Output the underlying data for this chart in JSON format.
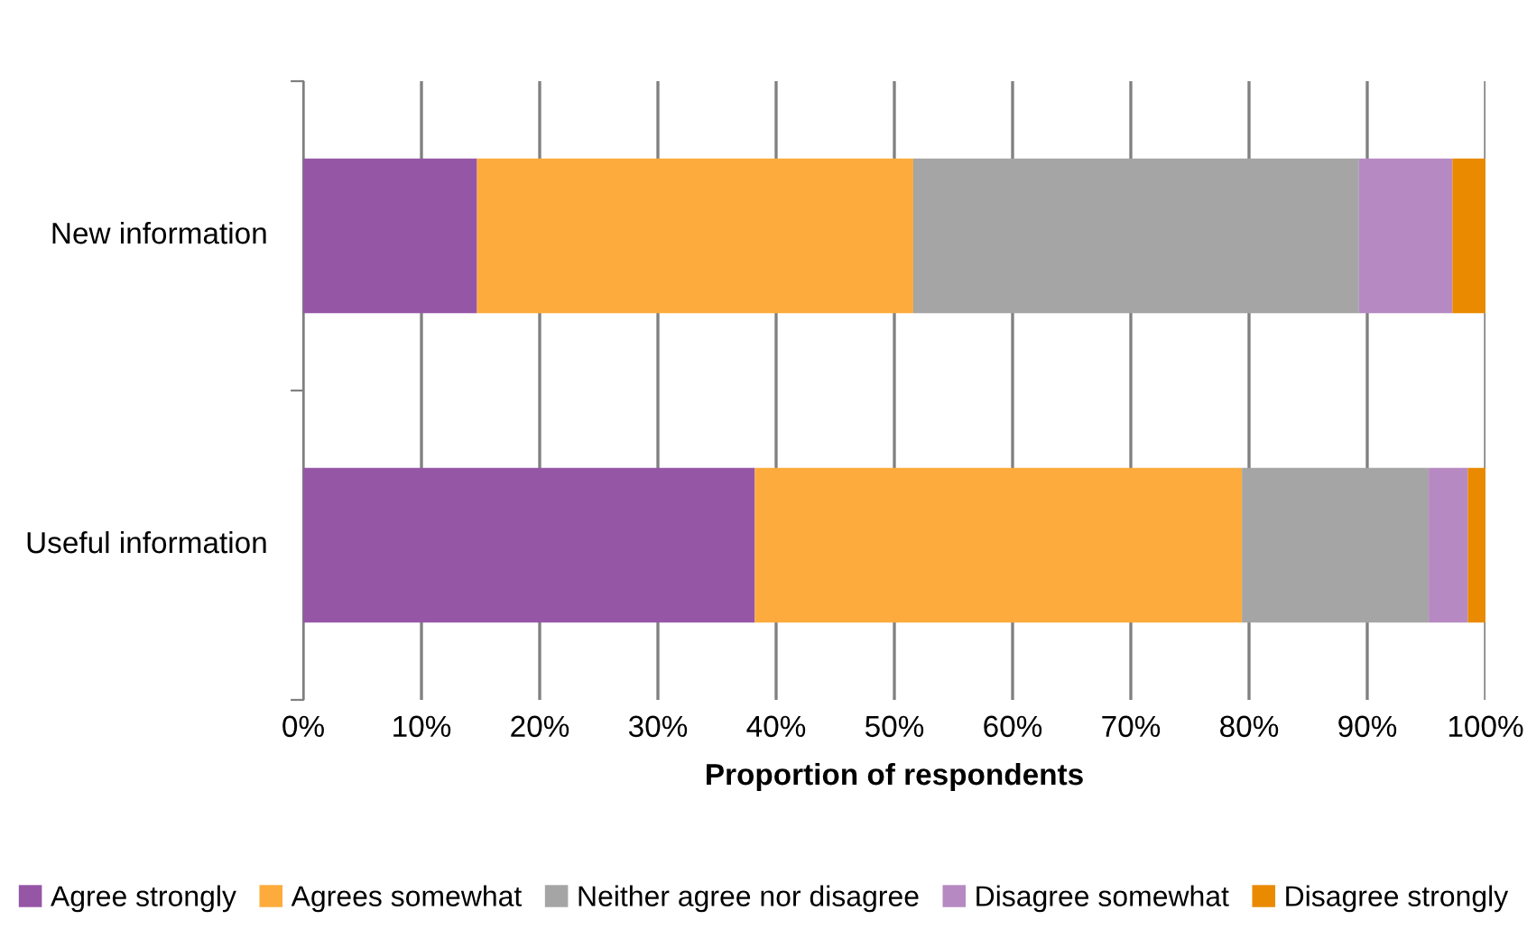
{
  "chart_data": {
    "type": "bar",
    "orientation": "horizontal",
    "stacked": true,
    "categories": [
      "New information",
      "Useful information"
    ],
    "series": [
      {
        "name": "Agree strongly",
        "color": "#9656a6",
        "values": [
          14.7,
          38.2
        ]
      },
      {
        "name": "Agrees somewhat",
        "color": "#fdab3c",
        "values": [
          36.9,
          41.2
        ]
      },
      {
        "name": "Neither agree nor disagree",
        "color": "#a5a5a5",
        "values": [
          37.7,
          15.8
        ]
      },
      {
        "name": "Disagree somewhat",
        "color": "#b689c2",
        "values": [
          7.9,
          3.3
        ]
      },
      {
        "name": "Disagree strongly",
        "color": "#e98a00",
        "values": [
          2.8,
          1.5
        ]
      }
    ],
    "xlabel": "Proportion of respondents",
    "xlim": [
      0,
      100
    ],
    "xticks": [
      {
        "value": 0,
        "label": "0%"
      },
      {
        "value": 10,
        "label": "10%"
      },
      {
        "value": 20,
        "label": "20%"
      },
      {
        "value": 30,
        "label": "30%"
      },
      {
        "value": 40,
        "label": "40%"
      },
      {
        "value": 50,
        "label": "50%"
      },
      {
        "value": 60,
        "label": "60%"
      },
      {
        "value": 70,
        "label": "70%"
      },
      {
        "value": 80,
        "label": "80%"
      },
      {
        "value": 90,
        "label": "90%"
      },
      {
        "value": 100,
        "label": "100%"
      }
    ],
    "grid": "x",
    "legend": "bottom"
  }
}
